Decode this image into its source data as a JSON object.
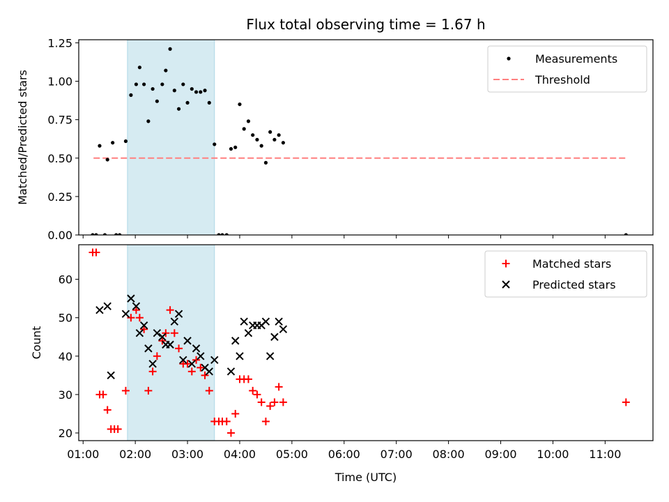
{
  "title": "Flux total observing time = 1.67 h",
  "colors": {
    "measurement": "#000000",
    "threshold": "#ff7f7f",
    "matched": "#ff0000",
    "predicted": "#000000",
    "shade": "#add8e6"
  },
  "chart_data": [
    {
      "type": "scatter",
      "ylabel": "Matched/Predicted stars",
      "xlabel": "",
      "xlim": [
        "00:55",
        "11:55"
      ],
      "ylim": [
        0,
        1.27
      ],
      "yticks": [
        "0.00",
        "0.25",
        "0.50",
        "0.75",
        "1.00",
        "1.25"
      ],
      "shaded_interval": [
        "01:51",
        "03:31"
      ],
      "legend": {
        "placement": "top-right",
        "entries": [
          "Measurements",
          "Threshold"
        ]
      },
      "threshold": {
        "name": "Threshold",
        "value": 0.5,
        "x_start": "01:12",
        "x_end": "11:24"
      },
      "series": [
        {
          "name": "Measurements",
          "marker": "dot",
          "points": [
            [
              "01:11",
              0.0
            ],
            [
              "01:15",
              0.0
            ],
            [
              "01:19",
              0.58
            ],
            [
              "01:25",
              0.0
            ],
            [
              "01:28",
              0.49
            ],
            [
              "01:34",
              0.6
            ],
            [
              "01:38",
              0.0
            ],
            [
              "01:42",
              0.0
            ],
            [
              "01:49",
              0.61
            ],
            [
              "01:55",
              0.91
            ],
            [
              "02:01",
              0.98
            ],
            [
              "02:05",
              1.09
            ],
            [
              "02:10",
              0.98
            ],
            [
              "02:15",
              0.74
            ],
            [
              "02:20",
              0.95
            ],
            [
              "02:25",
              0.87
            ],
            [
              "02:31",
              0.98
            ],
            [
              "02:35",
              1.07
            ],
            [
              "02:40",
              1.21
            ],
            [
              "02:45",
              0.94
            ],
            [
              "02:50",
              0.82
            ],
            [
              "02:55",
              0.98
            ],
            [
              "03:00",
              0.86
            ],
            [
              "03:05",
              0.95
            ],
            [
              "03:10",
              0.93
            ],
            [
              "03:15",
              0.93
            ],
            [
              "03:20",
              0.94
            ],
            [
              "03:25",
              0.86
            ],
            [
              "03:31",
              0.59
            ],
            [
              "03:36",
              0.0
            ],
            [
              "03:40",
              0.0
            ],
            [
              "03:45",
              0.0
            ],
            [
              "03:50",
              0.56
            ],
            [
              "03:55",
              0.57
            ],
            [
              "04:00",
              0.85
            ],
            [
              "04:05",
              0.69
            ],
            [
              "04:10",
              0.74
            ],
            [
              "04:15",
              0.65
            ],
            [
              "04:20",
              0.62
            ],
            [
              "04:25",
              0.58
            ],
            [
              "04:30",
              0.47
            ],
            [
              "04:35",
              0.67
            ],
            [
              "04:40",
              0.62
            ],
            [
              "04:45",
              0.65
            ],
            [
              "04:50",
              0.6
            ],
            [
              "11:24",
              0.0
            ]
          ]
        }
      ]
    },
    {
      "type": "scatter",
      "ylabel": "Count",
      "xlabel": "Time (UTC)",
      "xlim": [
        "00:55",
        "11:55"
      ],
      "ylim": [
        18,
        69
      ],
      "yticks": [
        "20",
        "30",
        "40",
        "50",
        "60"
      ],
      "xticks": [
        "01:00",
        "02:00",
        "03:00",
        "04:00",
        "05:00",
        "06:00",
        "07:00",
        "08:00",
        "09:00",
        "10:00",
        "11:00"
      ],
      "shaded_interval": [
        "01:51",
        "03:31"
      ],
      "legend": {
        "placement": "top-right",
        "entries": [
          "Matched stars",
          "Predicted stars"
        ]
      },
      "series": [
        {
          "name": "Matched stars",
          "marker": "plus",
          "points": [
            [
              "01:11",
              67
            ],
            [
              "01:15",
              67
            ],
            [
              "01:19",
              30
            ],
            [
              "01:23",
              30
            ],
            [
              "01:28",
              26
            ],
            [
              "01:32",
              21
            ],
            [
              "01:36",
              21
            ],
            [
              "01:40",
              21
            ],
            [
              "01:49",
              31
            ],
            [
              "01:55",
              50
            ],
            [
              "02:01",
              52
            ],
            [
              "02:05",
              50
            ],
            [
              "02:10",
              47
            ],
            [
              "02:15",
              31
            ],
            [
              "02:20",
              36
            ],
            [
              "02:25",
              40
            ],
            [
              "02:31",
              44
            ],
            [
              "02:35",
              46
            ],
            [
              "02:40",
              52
            ],
            [
              "02:45",
              46
            ],
            [
              "02:50",
              42
            ],
            [
              "02:55",
              38
            ],
            [
              "03:00",
              38
            ],
            [
              "03:05",
              36
            ],
            [
              "03:10",
              39
            ],
            [
              "03:15",
              37
            ],
            [
              "03:20",
              35
            ],
            [
              "03:25",
              31
            ],
            [
              "03:31",
              23
            ],
            [
              "03:36",
              23
            ],
            [
              "03:40",
              23
            ],
            [
              "03:45",
              23
            ],
            [
              "03:50",
              20
            ],
            [
              "03:55",
              25
            ],
            [
              "04:00",
              34
            ],
            [
              "04:05",
              34
            ],
            [
              "04:10",
              34
            ],
            [
              "04:15",
              31
            ],
            [
              "04:20",
              30
            ],
            [
              "04:25",
              28
            ],
            [
              "04:30",
              23
            ],
            [
              "04:35",
              27
            ],
            [
              "04:40",
              28
            ],
            [
              "04:45",
              32
            ],
            [
              "04:50",
              28
            ],
            [
              "11:24",
              28
            ]
          ]
        },
        {
          "name": "Predicted stars",
          "marker": "x",
          "points": [
            [
              "01:19",
              52
            ],
            [
              "01:28",
              53
            ],
            [
              "01:32",
              35
            ],
            [
              "01:49",
              51
            ],
            [
              "01:55",
              55
            ],
            [
              "02:01",
              53
            ],
            [
              "02:05",
              46
            ],
            [
              "02:10",
              48
            ],
            [
              "02:15",
              42
            ],
            [
              "02:20",
              38
            ],
            [
              "02:25",
              46
            ],
            [
              "02:31",
              45
            ],
            [
              "02:35",
              43
            ],
            [
              "02:40",
              43
            ],
            [
              "02:45",
              49
            ],
            [
              "02:50",
              51
            ],
            [
              "02:55",
              39
            ],
            [
              "03:00",
              44
            ],
            [
              "03:05",
              38
            ],
            [
              "03:10",
              42
            ],
            [
              "03:15",
              40
            ],
            [
              "03:20",
              37
            ],
            [
              "03:25",
              36
            ],
            [
              "03:31",
              39
            ],
            [
              "03:50",
              36
            ],
            [
              "03:55",
              44
            ],
            [
              "04:00",
              40
            ],
            [
              "04:05",
              49
            ],
            [
              "04:10",
              46
            ],
            [
              "04:15",
              48
            ],
            [
              "04:20",
              48
            ],
            [
              "04:25",
              48
            ],
            [
              "04:30",
              49
            ],
            [
              "04:35",
              40
            ],
            [
              "04:40",
              45
            ],
            [
              "04:45",
              49
            ],
            [
              "04:50",
              47
            ]
          ]
        }
      ]
    }
  ]
}
